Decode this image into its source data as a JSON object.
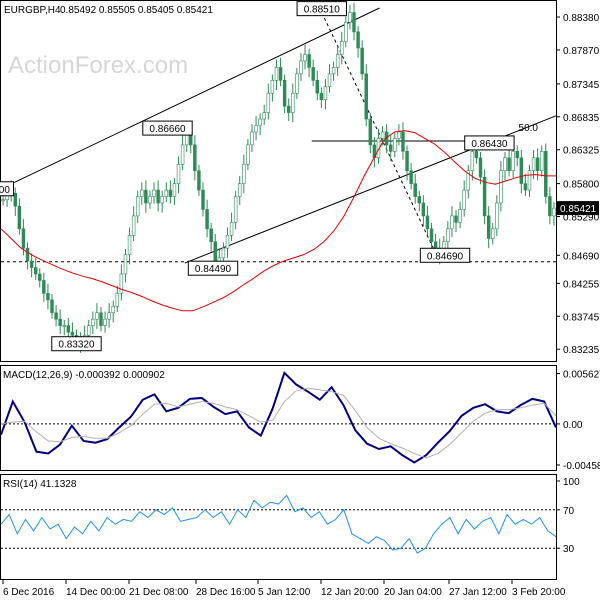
{
  "header": {
    "symbol": "EURGBP,H4",
    "ohlc": "0.85492 0.85505 0.85405 0.85421"
  },
  "watermark": "ActionForex.com",
  "colors": {
    "price_bars": "#2e8b57",
    "ma_line": "#e00000",
    "macd_main": "#000080",
    "macd_signal": "#b0b0b0",
    "rsi_line": "#1e90ff",
    "channel": "#000000",
    "level_line": "#000000",
    "current_price_box": "#000000"
  },
  "chart_data": [
    {
      "type": "candlestick",
      "name": "price",
      "ylim": [
        0.8313,
        0.8852
      ],
      "yticks": [
        "0.88380",
        "0.87870",
        "0.87345",
        "0.86835",
        "0.86325",
        "0.85800",
        "0.85290",
        "0.84690",
        "0.84255",
        "0.83745",
        "0.83235"
      ],
      "x_tick_labels": [
        "6 Dec 2016",
        "14 Dec 00:00",
        "21 Dec 08:00",
        "28 Dec 16:00",
        "5 Jan 12:00",
        "12 Jan 20:00",
        "20 Jan 04:00",
        "27 Jan 12:00",
        "3 Feb 20:00"
      ],
      "close": [
        0.8555,
        0.857,
        0.8565,
        0.8545,
        0.851,
        0.848,
        0.846,
        0.845,
        0.844,
        0.843,
        0.841,
        0.84,
        0.838,
        0.837,
        0.836,
        0.836,
        0.835,
        0.8345,
        0.8338,
        0.8333,
        0.8345,
        0.836,
        0.837,
        0.838,
        0.836,
        0.837,
        0.838,
        0.839,
        0.841,
        0.844,
        0.847,
        0.85,
        0.853,
        0.856,
        0.857,
        0.855,
        0.856,
        0.857,
        0.855,
        0.856,
        0.857,
        0.856,
        0.858,
        0.861,
        0.864,
        0.866,
        0.864,
        0.86,
        0.857,
        0.854,
        0.851,
        0.849,
        0.8455,
        0.8465,
        0.848,
        0.85,
        0.852,
        0.856,
        0.858,
        0.861,
        0.864,
        0.866,
        0.867,
        0.868,
        0.869,
        0.872,
        0.874,
        0.876,
        0.874,
        0.87,
        0.869,
        0.872,
        0.875,
        0.877,
        0.878,
        0.876,
        0.874,
        0.872,
        0.871,
        0.873,
        0.875,
        0.876,
        0.878,
        0.88,
        0.883,
        0.8845,
        0.8815,
        0.879,
        0.875,
        0.868,
        0.864,
        0.862,
        0.865,
        0.866,
        0.864,
        0.863,
        0.865,
        0.866,
        0.863,
        0.86,
        0.858,
        0.856,
        0.855,
        0.853,
        0.851,
        0.849,
        0.848,
        0.847,
        0.849,
        0.851,
        0.853,
        0.852,
        0.854,
        0.857,
        0.86,
        0.863,
        0.862,
        0.859,
        0.853,
        0.8495,
        0.851,
        0.855,
        0.86,
        0.862,
        0.86,
        0.863,
        0.862,
        0.858,
        0.857,
        0.86,
        0.862,
        0.86,
        0.863,
        0.856,
        0.853,
        0.8542
      ],
      "ma": [
        0.851,
        0.8495,
        0.848,
        0.847,
        0.8462,
        0.8455,
        0.8448,
        0.8442,
        0.8437,
        0.8433,
        0.8428,
        0.8422,
        0.8416,
        0.8411,
        0.8405,
        0.8398,
        0.8392,
        0.8387,
        0.8383,
        0.8383,
        0.8389,
        0.8396,
        0.8403,
        0.8412,
        0.8423,
        0.8433,
        0.8444,
        0.8453,
        0.846,
        0.8465,
        0.847,
        0.8478,
        0.849,
        0.8507,
        0.853,
        0.856,
        0.8592,
        0.8621,
        0.8649,
        0.866,
        0.8662,
        0.8659,
        0.865,
        0.8641,
        0.8628,
        0.8613,
        0.8599,
        0.8588,
        0.8582,
        0.8579,
        0.8584,
        0.8589,
        0.8593,
        0.8594,
        0.8592,
        0.8592
      ],
      "channel_upper": [
        [
          0.0,
          0.8572
        ],
        [
          0.682,
          0.8852
        ]
      ],
      "channel_lower": [
        [
          0.331,
          0.8457
        ],
        [
          1.0,
          0.8685
        ]
      ],
      "dashed_lines": [
        [
          [
            0.0,
            0.8459
          ],
          [
            1.0,
            0.8459
          ]
        ],
        [
          [
            0.578,
            0.8845
          ],
          [
            0.785,
            0.8469
          ]
        ]
      ],
      "resistance_line": [
        [
          0.56,
          0.8646
        ],
        [
          0.912,
          0.8646
        ]
      ],
      "labels": [
        {
          "text": "0.88510",
          "x": 0.578,
          "y": 0.8851
        },
        {
          "text": "0.86660",
          "x": 0.3,
          "y": 0.8666
        },
        {
          "text": "0.84490",
          "x": 0.382,
          "y": 0.8449
        },
        {
          "text": "0.83320",
          "x": 0.136,
          "y": 0.8332
        },
        {
          "text": "0.84690",
          "x": 0.8,
          "y": 0.8469
        },
        {
          "text": "0.86430",
          "x": 0.88,
          "y": 0.8643
        },
        {
          "text": "00",
          "x": 0.006,
          "y": 0.8572
        },
        {
          "text": "50.0",
          "x": 0.95,
          "y": 0.8668
        }
      ],
      "current_price": "0.85421"
    },
    {
      "type": "line",
      "name": "MACD(12,26,9)",
      "header": "MACD(12,26,9) -0.000392 0.000902",
      "yticks": [
        "0.005627",
        "0.00",
        "-0.004586"
      ],
      "ylim": [
        -0.0047,
        0.0058
      ],
      "series": [
        {
          "values": [
            -0.0012,
            0.0025,
            0.0002,
            -0.0031,
            -0.0033,
            -0.0023,
            -0.0002,
            -0.0019,
            -0.0021,
            -0.0017,
            -0.0004,
            0.0008,
            0.0027,
            0.0033,
            0.0014,
            0.0018,
            0.0028,
            0.0029,
            0.0019,
            0.0011,
            0.0014,
            -0.0004,
            -0.0013,
            0.0017,
            0.0057,
            0.0044,
            0.0036,
            0.0027,
            0.0041,
            0.0021,
            -0.0007,
            -0.0022,
            -0.0028,
            -0.0025,
            -0.0035,
            -0.0043,
            -0.0035,
            -0.0021,
            -0.0008,
            0.0009,
            0.0018,
            0.0022,
            0.0014,
            0.0012,
            0.0021,
            0.0028,
            0.0025,
            -0.0004
          ]
        },
        {
          "values": [
            0.0,
            0.0002,
            0.0003,
            -0.0009,
            -0.0019,
            -0.002,
            -0.0015,
            -0.0014,
            -0.0016,
            -0.0016,
            -0.001,
            -0.0002,
            0.0011,
            0.0022,
            0.0023,
            0.0019,
            0.0022,
            0.0025,
            0.0023,
            0.0019,
            0.0016,
            0.0009,
            0.0002,
            0.0004,
            0.0025,
            0.0037,
            0.004,
            0.0038,
            0.0036,
            0.0032,
            0.0015,
            -0.0004,
            -0.0016,
            -0.0022,
            -0.0027,
            -0.0033,
            -0.0038,
            -0.0033,
            -0.0023,
            -0.001,
            0.0003,
            0.0012,
            0.0016,
            0.0016,
            0.0018,
            0.0021,
            0.0023,
            0.0009
          ]
        }
      ]
    },
    {
      "type": "line",
      "name": "RSI(14)",
      "header": "RSI(14) 41.1328",
      "yticks": [
        "100",
        "70",
        "30",
        "0"
      ],
      "ylim": [
        0,
        100
      ],
      "levels": [
        70,
        30
      ],
      "values": [
        55,
        65,
        45,
        60,
        48,
        62,
        50,
        55,
        40,
        52,
        45,
        58,
        48,
        62,
        55,
        60,
        58,
        68,
        62,
        70,
        65,
        72,
        58,
        60,
        62,
        70,
        62,
        68,
        55,
        70,
        62,
        80,
        72,
        78,
        76,
        85,
        68,
        72,
        62,
        68,
        55,
        60,
        70,
        45,
        40,
        35,
        42,
        38,
        28,
        30,
        40,
        25,
        30,
        45,
        55,
        62,
        45,
        60,
        50,
        58,
        62,
        45,
        65,
        55,
        60,
        55,
        62,
        48,
        42
      ]
    }
  ]
}
